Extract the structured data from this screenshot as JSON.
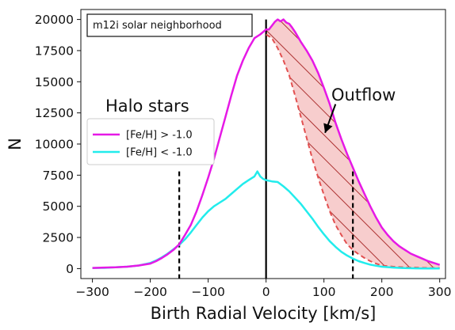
{
  "chart_data": {
    "type": "line",
    "title": "",
    "xlabel": "Birth Radial Velocity [km/s]",
    "ylabel": "N",
    "xlim": [
      -320,
      310
    ],
    "ylim": [
      -800,
      20800
    ],
    "xticks": [
      -300,
      -200,
      -100,
      0,
      100,
      200,
      300
    ],
    "yticks": [
      0,
      2500,
      5000,
      7500,
      10000,
      12500,
      15000,
      17500,
      20000
    ],
    "grid": false,
    "box_label": "m12i solar neighborhood",
    "text_labels": {
      "halo": "Halo stars",
      "outflow": "Outflow"
    },
    "legend": {
      "placement": "center-left",
      "entries": [
        "[Fe/H] > -1.0",
        "[Fe/H] < -1.0"
      ]
    },
    "colors": {
      "metal_rich": "#e619e6",
      "metal_poor": "#22ecec",
      "mirror": "#e25050",
      "hatch": "#a52020",
      "fill": "#f7cdcd"
    },
    "vertical_lines": {
      "solid": 0,
      "dashed": [
        -150,
        150
      ],
      "dashed_ymax": 7800
    },
    "arrow": {
      "from": [
        120,
        13200
      ],
      "to": [
        102,
        10900
      ]
    },
    "series": [
      {
        "name": "[Fe/H] > -1.0",
        "x": [
          -300,
          -280,
          -260,
          -240,
          -220,
          -200,
          -190,
          -180,
          -170,
          -160,
          -150,
          -140,
          -130,
          -120,
          -110,
          -100,
          -90,
          -80,
          -70,
          -60,
          -50,
          -40,
          -30,
          -20,
          -10,
          0,
          5,
          10,
          15,
          20,
          25,
          30,
          35,
          40,
          45,
          50,
          60,
          70,
          80,
          90,
          100,
          110,
          120,
          130,
          140,
          150,
          160,
          170,
          180,
          190,
          200,
          210,
          220,
          230,
          240,
          250,
          260,
          270,
          280,
          290,
          300
        ],
        "y": [
          50,
          80,
          100,
          150,
          250,
          400,
          600,
          850,
          1150,
          1500,
          1950,
          2700,
          3500,
          4600,
          5900,
          7300,
          8800,
          10500,
          12200,
          13900,
          15500,
          16700,
          17700,
          18500,
          18800,
          19200,
          19200,
          19500,
          19800,
          20000,
          19850,
          20000,
          19750,
          19650,
          19350,
          19000,
          18200,
          17500,
          16700,
          15700,
          14500,
          13200,
          11700,
          10400,
          9200,
          8100,
          7000,
          6000,
          5000,
          4100,
          3300,
          2700,
          2200,
          1800,
          1500,
          1200,
          1000,
          800,
          600,
          450,
          300
        ]
      },
      {
        "name": "[Fe/H] < -1.0",
        "x": [
          -300,
          -280,
          -260,
          -240,
          -220,
          -200,
          -190,
          -180,
          -170,
          -160,
          -150,
          -140,
          -130,
          -120,
          -110,
          -100,
          -90,
          -80,
          -70,
          -60,
          -50,
          -40,
          -30,
          -20,
          -15,
          -10,
          -5,
          0,
          10,
          20,
          30,
          40,
          50,
          60,
          70,
          80,
          90,
          100,
          110,
          120,
          130,
          140,
          150,
          160,
          170,
          180,
          190,
          200,
          220,
          240,
          260,
          280,
          300
        ],
        "y": [
          50,
          60,
          100,
          150,
          250,
          450,
          650,
          900,
          1200,
          1550,
          1900,
          2350,
          2900,
          3500,
          4100,
          4600,
          5000,
          5300,
          5600,
          6000,
          6400,
          6800,
          7100,
          7400,
          7800,
          7400,
          7200,
          7100,
          7000,
          6950,
          6600,
          6200,
          5700,
          5200,
          4600,
          4000,
          3350,
          2750,
          2200,
          1750,
          1350,
          1050,
          800,
          600,
          450,
          320,
          230,
          150,
          80,
          40,
          20,
          10,
          5
        ]
      },
      {
        "name": "",
        "x": [
          0,
          10,
          20,
          30,
          40,
          50,
          60,
          70,
          80,
          90,
          100,
          110,
          120,
          130,
          140,
          150,
          160,
          170,
          180,
          190,
          200,
          220,
          240,
          260,
          280,
          300
        ],
        "y": [
          18800,
          18500,
          17700,
          16700,
          15500,
          13900,
          12200,
          10500,
          8800,
          7300,
          5900,
          4600,
          3500,
          2700,
          1950,
          1500,
          1150,
          850,
          600,
          400,
          250,
          150,
          100,
          80,
          50,
          50
        ]
      }
    ]
  }
}
